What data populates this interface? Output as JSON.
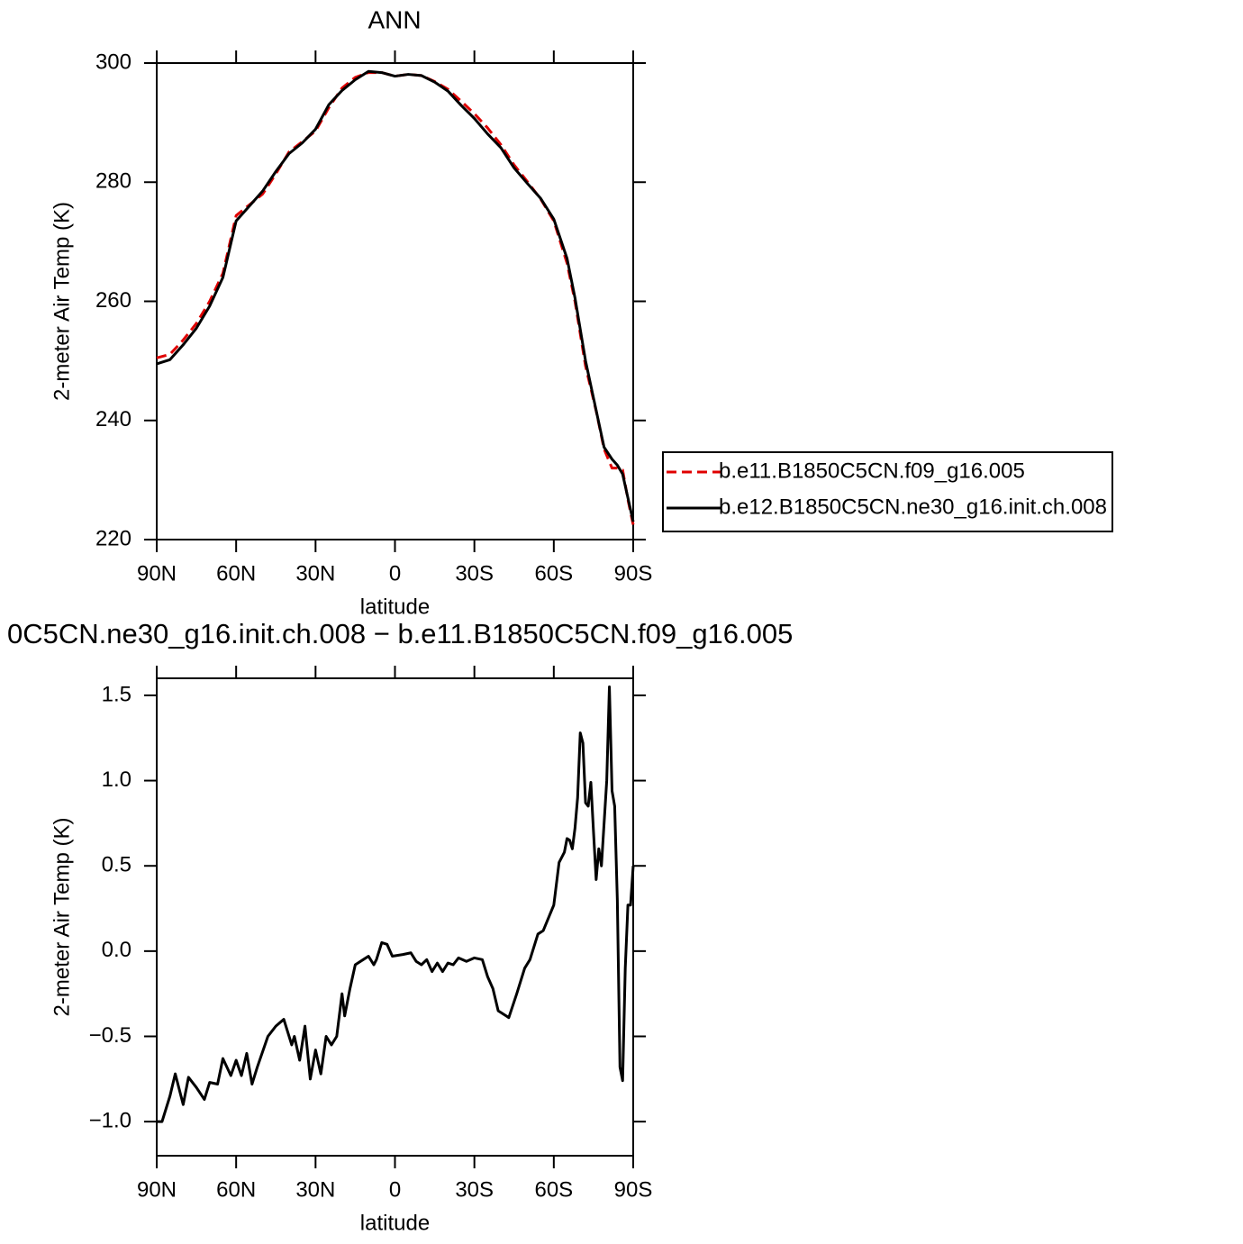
{
  "chart_data": [
    {
      "type": "line",
      "title": "ANN",
      "ylabel": "2-meter Air Temp (K)",
      "xlabel": "latitude",
      "xlim": [
        90,
        -90
      ],
      "xticks": [
        {
          "value": 90,
          "label": "90N"
        },
        {
          "value": 60,
          "label": "60N"
        },
        {
          "value": 30,
          "label": "30N"
        },
        0,
        {
          "value": -30,
          "label": "30S"
        },
        {
          "value": -60,
          "label": "60S"
        },
        {
          "value": -90,
          "label": "90S"
        }
      ],
      "ylim": [
        220,
        300
      ],
      "yticks": [
        220,
        240,
        260,
        280,
        300
      ],
      "legend": "right",
      "x": [
        90,
        85,
        80,
        75,
        70,
        65,
        60,
        55,
        50,
        45,
        40,
        35,
        30,
        25,
        20,
        15,
        10,
        5,
        0,
        -5,
        -10,
        -15,
        -20,
        -25,
        -30,
        -35,
        -40,
        -45,
        -50,
        -55,
        -60,
        -65,
        -68,
        -72,
        -76,
        -79,
        -82,
        -84,
        -86,
        -88,
        -90
      ],
      "series": [
        {
          "name": "b.e11.B1850C5CN.f09_g16.005",
          "color": "#e00000",
          "dash": true,
          "values": [
            250.5,
            251.1,
            253.5,
            256.3,
            260.0,
            264.7,
            274.4,
            276.2,
            278.0,
            281.4,
            285.1,
            286.8,
            288.6,
            292.5,
            295.8,
            297.6,
            298.4,
            298.4,
            297.8,
            298.1,
            297.9,
            296.9,
            295.6,
            293.6,
            291.5,
            289.1,
            286.3,
            282.9,
            280.1,
            277.2,
            273.5,
            266.4,
            260.0,
            249.1,
            241.6,
            235.2,
            232.0,
            232.0,
            231.7,
            226.7,
            222.5
          ]
        },
        {
          "name": "b.e12.B1850C5CN.ne30_g16.init.ch.008",
          "color": "#000000",
          "dash": false,
          "values": [
            249.5,
            250.2,
            252.7,
            255.5,
            259.2,
            264.0,
            273.5,
            276.0,
            278.5,
            281.8,
            284.8,
            286.6,
            288.9,
            293.0,
            295.4,
            297.2,
            298.6,
            298.4,
            297.8,
            298.1,
            297.9,
            296.8,
            295.3,
            292.9,
            290.7,
            288.1,
            285.8,
            282.4,
            279.8,
            277.3,
            273.8,
            267.2,
            260.6,
            250.0,
            241.7,
            235.5,
            233.5,
            232.5,
            231.0,
            227.0,
            223.0
          ]
        }
      ]
    },
    {
      "type": "line",
      "title": "0C5CN.ne30_g16.init.ch.008 − b.e11.B1850C5CN.f09_g16.005",
      "ylabel": "2-meter Air Temp (K)",
      "xlabel": "latitude",
      "xlim": [
        90,
        -90
      ],
      "xticks": [
        {
          "value": 90,
          "label": "90N"
        },
        {
          "value": 60,
          "label": "60N"
        },
        {
          "value": 30,
          "label": "30N"
        },
        0,
        {
          "value": -30,
          "label": "30S"
        },
        {
          "value": -60,
          "label": "60S"
        },
        {
          "value": -90,
          "label": "90S"
        }
      ],
      "ylim": [
        -1.2,
        1.6
      ],
      "yticks": [
        {
          "value": -1.0,
          "label": "−1.0"
        },
        {
          "value": -0.5,
          "label": "−0.5"
        },
        {
          "value": 0,
          "label": "0.0"
        },
        0.5,
        {
          "value": 1.0,
          "label": "1.0"
        },
        1.5
      ],
      "color": "#000000",
      "x": [
        90,
        88,
        85,
        83,
        80,
        78,
        75,
        72,
        70,
        67,
        65,
        62,
        60,
        58,
        56,
        54,
        52,
        48,
        45,
        42,
        39,
        38,
        36,
        34,
        32,
        30,
        28,
        26,
        24,
        22,
        20,
        19,
        17,
        15,
        12,
        10,
        8,
        7,
        5,
        3,
        1,
        -3,
        -6,
        -8,
        -10,
        -12,
        -14,
        -16,
        -18,
        -20,
        -22,
        -24,
        -27,
        -30,
        -33,
        -35,
        -37,
        -39,
        -42,
        -43,
        -46,
        -49,
        -51,
        -54,
        -56,
        -60,
        -62,
        -64,
        -65,
        -66,
        -67,
        -68,
        -69,
        -70,
        -71,
        -72,
        -73,
        -74,
        -75,
        -76,
        -77,
        -78,
        -80,
        -81,
        -82,
        -83,
        -84,
        -85,
        -86,
        -87,
        -88,
        -89,
        -90
      ],
      "values": [
        -1.0,
        -1.0,
        -0.85,
        -0.72,
        -0.9,
        -0.74,
        -0.8,
        -0.87,
        -0.77,
        -0.78,
        -0.63,
        -0.73,
        -0.64,
        -0.73,
        -0.6,
        -0.78,
        -0.68,
        -0.5,
        -0.44,
        -0.4,
        -0.55,
        -0.5,
        -0.64,
        -0.44,
        -0.75,
        -0.58,
        -0.72,
        -0.5,
        -0.55,
        -0.5,
        -0.25,
        -0.38,
        -0.22,
        -0.08,
        -0.05,
        -0.03,
        -0.08,
        -0.05,
        0.05,
        0.04,
        -0.03,
        -0.02,
        -0.01,
        -0.06,
        -0.08,
        -0.05,
        -0.12,
        -0.07,
        -0.12,
        -0.07,
        -0.08,
        -0.04,
        -0.06,
        -0.04,
        -0.05,
        -0.15,
        -0.22,
        -0.35,
        -0.38,
        -0.39,
        -0.25,
        -0.1,
        -0.05,
        0.1,
        0.12,
        0.27,
        0.52,
        0.58,
        0.66,
        0.65,
        0.6,
        0.72,
        0.9,
        1.28,
        1.22,
        0.87,
        0.85,
        0.99,
        0.7,
        0.42,
        0.6,
        0.5,
        1.0,
        1.55,
        0.94,
        0.85,
        0.3,
        -0.68,
        -0.76,
        -0.1,
        0.27,
        0.27,
        0.5
      ]
    }
  ]
}
